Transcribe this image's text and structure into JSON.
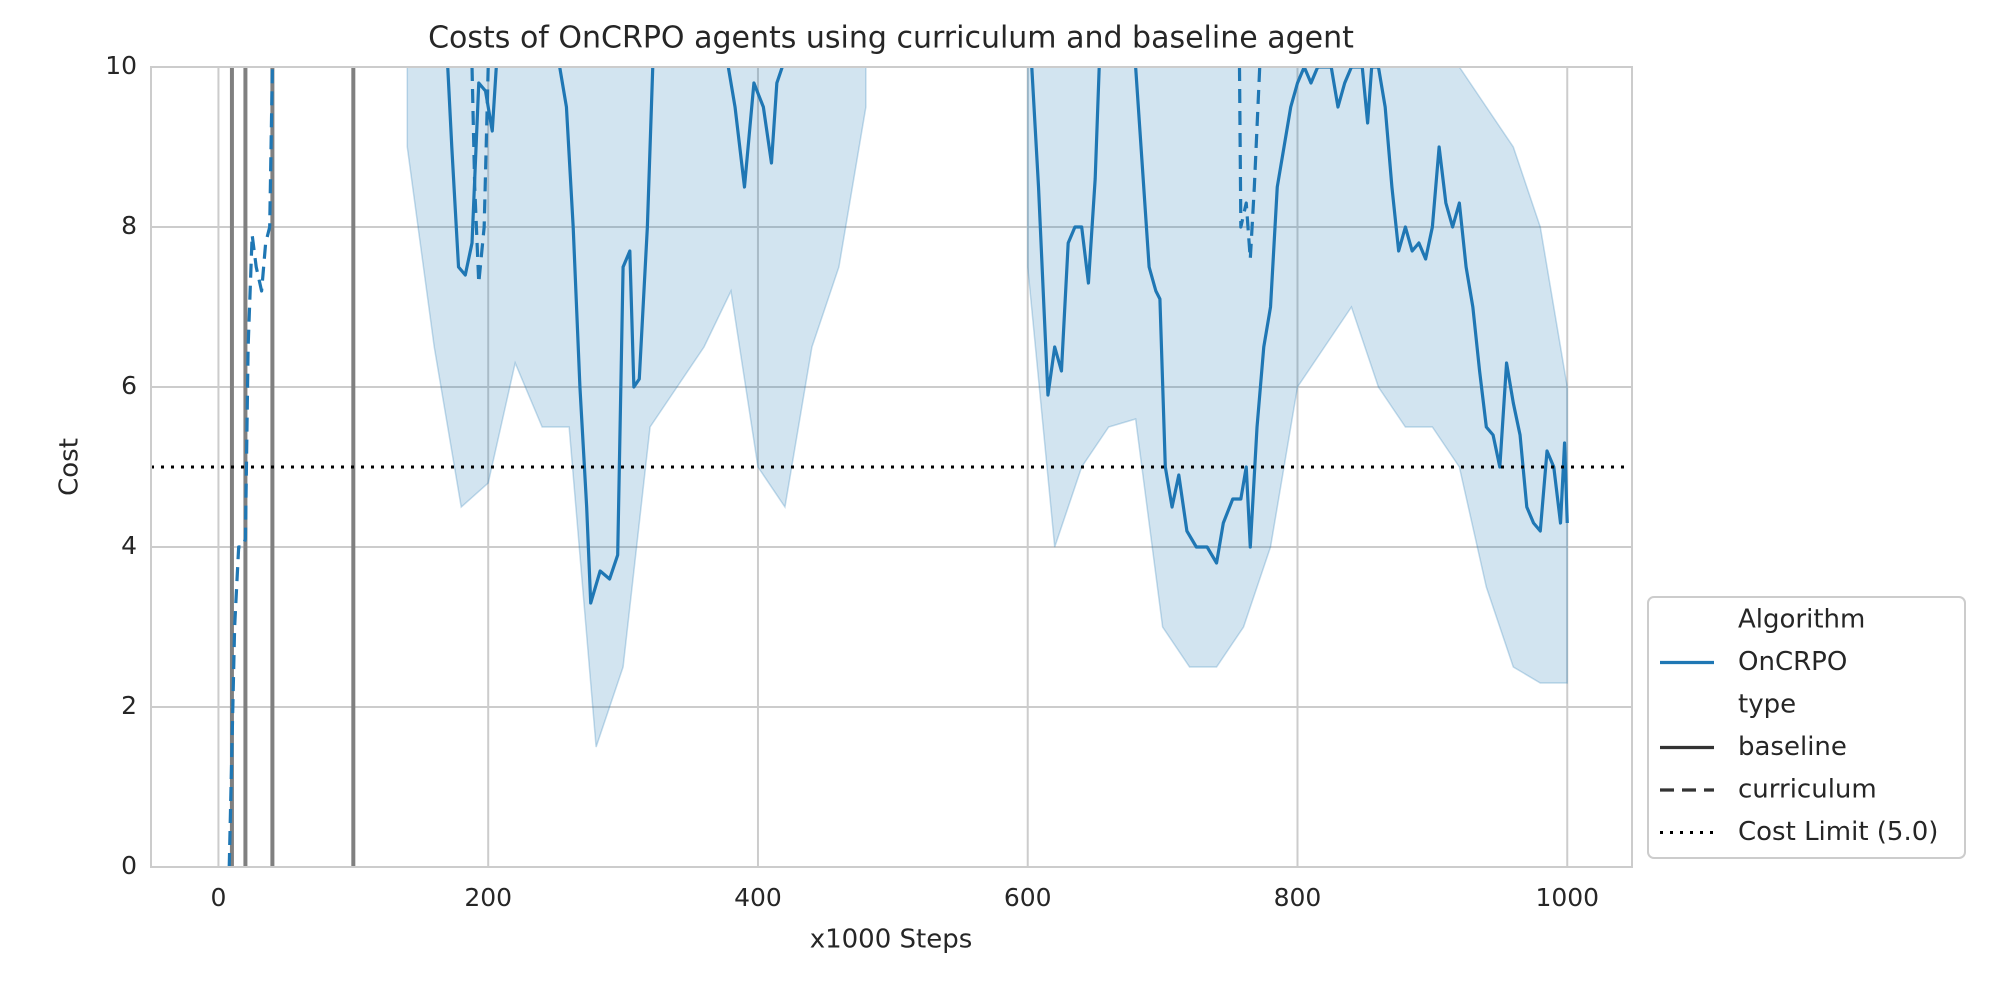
{
  "chart_data": {
    "type": "line",
    "title": "Costs of OnCRPO agents using curriculum and baseline agent",
    "x_label": "x1000 Steps",
    "y_label": "Cost",
    "xlim": [
      -50,
      1048
    ],
    "ylim": [
      0,
      10
    ],
    "xticks": [
      0,
      200,
      400,
      600,
      800,
      1000
    ],
    "yticks": [
      0,
      2,
      4,
      6,
      8,
      10
    ],
    "grid": true,
    "legend_position": "lower right",
    "legend": {
      "hue_title": "Algorithm",
      "hue": "OnCRPO",
      "style_title": "type"
    },
    "color": "#1f77b4",
    "series": [
      {
        "name": "baseline",
        "dash": "solid",
        "x": [
          170,
          173,
          178,
          183,
          188,
          193,
          198,
          203,
          206,
          230,
          253,
          258,
          263,
          268,
          273,
          276,
          283,
          290,
          296,
          300,
          305,
          308,
          312,
          318,
          322,
          350,
          378,
          383,
          390,
          397,
          404,
          410,
          414,
          418,
          500,
          603,
          608,
          612,
          615,
          620,
          625,
          630,
          635,
          640,
          645,
          650,
          653,
          666,
          680,
          690,
          695,
          698,
          702,
          707,
          712,
          718,
          725,
          733,
          740,
          745,
          752,
          758,
          762,
          765,
          770,
          775,
          780,
          785,
          790,
          795,
          800,
          805,
          810,
          815,
          825,
          830,
          835,
          840,
          848,
          852,
          855,
          860,
          865,
          870,
          875,
          880,
          885,
          890,
          895,
          900,
          905,
          910,
          915,
          920,
          925,
          930,
          935,
          940,
          945,
          950,
          955,
          960,
          965,
          970,
          975,
          980,
          985,
          990,
          995,
          998,
          1000
        ],
        "values": [
          10,
          9,
          7.5,
          7.4,
          7.8,
          9.8,
          9.7,
          9.2,
          10,
          null,
          10,
          9.5,
          8,
          6,
          4.5,
          3.3,
          3.7,
          3.6,
          3.9,
          7.5,
          7.7,
          6.0,
          6.1,
          8,
          10,
          null,
          10,
          9.5,
          8.5,
          9.8,
          9.5,
          8.8,
          9.8,
          10,
          null,
          10,
          8.5,
          7.0,
          5.9,
          6.5,
          6.2,
          7.8,
          8.0,
          8.0,
          7.3,
          8.6,
          10,
          null,
          10,
          7.5,
          7.2,
          7.1,
          5.0,
          4.5,
          4.9,
          4.2,
          4.0,
          4.0,
          3.8,
          4.3,
          4.6,
          4.6,
          5.0,
          4.0,
          5.5,
          6.5,
          7.0,
          8.5,
          9.0,
          9.5,
          9.8,
          10,
          9.8,
          10,
          10,
          9.5,
          9.8,
          10,
          10,
          9.3,
          10,
          10,
          9.5,
          8.5,
          7.7,
          8.0,
          7.7,
          7.8,
          7.6,
          8.0,
          9.0,
          8.3,
          8.0,
          8.3,
          7.5,
          7.0,
          6.2,
          5.5,
          5.4,
          5.0,
          6.3,
          5.8,
          5.4,
          4.5,
          4.3,
          4.2,
          5.2,
          5.0,
          4.3,
          5.3,
          4.3
        ]
      },
      {
        "name": "curriculum",
        "dash": "dashed",
        "x": [
          8,
          10,
          12,
          15,
          18,
          20,
          22,
          25,
          28,
          32,
          35,
          38,
          40,
          100,
          188,
          190,
          193,
          197,
          200,
          400,
          757,
          758,
          762,
          765,
          768,
          772
        ],
        "values": [
          0,
          1.5,
          3.0,
          4.0,
          4.0,
          4.1,
          6.5,
          7.9,
          7.5,
          7.2,
          7.8,
          8.0,
          10,
          null,
          10,
          8.5,
          7.3,
          8.0,
          10,
          null,
          10,
          8.0,
          8.3,
          7.6,
          8.5,
          10
        ]
      }
    ],
    "band": {
      "x": [
        140,
        160,
        180,
        200,
        220,
        240,
        260,
        280,
        300,
        320,
        340,
        360,
        380,
        400,
        420,
        440,
        460,
        480,
        500,
        520,
        540,
        560,
        580,
        600,
        620,
        640,
        660,
        680,
        700,
        720,
        740,
        760,
        780,
        800,
        820,
        840,
        860,
        880,
        900,
        920,
        940,
        960,
        980,
        1000
      ],
      "lower": [
        9,
        6.5,
        4.5,
        4.8,
        6.3,
        5.5,
        5.5,
        1.5,
        2.5,
        5.5,
        6.0,
        6.5,
        7.2,
        5.0,
        4.5,
        6.5,
        7.5,
        9.5,
        null,
        null,
        null,
        null,
        null,
        7.5,
        4.0,
        5.0,
        5.5,
        5.6,
        3.0,
        2.5,
        2.5,
        3.0,
        4.0,
        6.0,
        6.5,
        7.0,
        6.0,
        5.5,
        5.5,
        5.0,
        3.5,
        2.5,
        2.3,
        2.3
      ],
      "upper": [
        10,
        10,
        10,
        10,
        10,
        10,
        10,
        10,
        10,
        10,
        10,
        10,
        10,
        10,
        10,
        10,
        10,
        10,
        null,
        null,
        null,
        null,
        null,
        10,
        10,
        10,
        10,
        10,
        10,
        10,
        10,
        10,
        10,
        10,
        10,
        10,
        10,
        10,
        10,
        10,
        9.5,
        9.0,
        8.0,
        6.0
      ]
    },
    "vlines": [
      10,
      20,
      40,
      100
    ],
    "vline_color": "#808080",
    "hline": {
      "name": "Cost Limit (5.0)",
      "value": 5,
      "color": "#000000"
    }
  }
}
